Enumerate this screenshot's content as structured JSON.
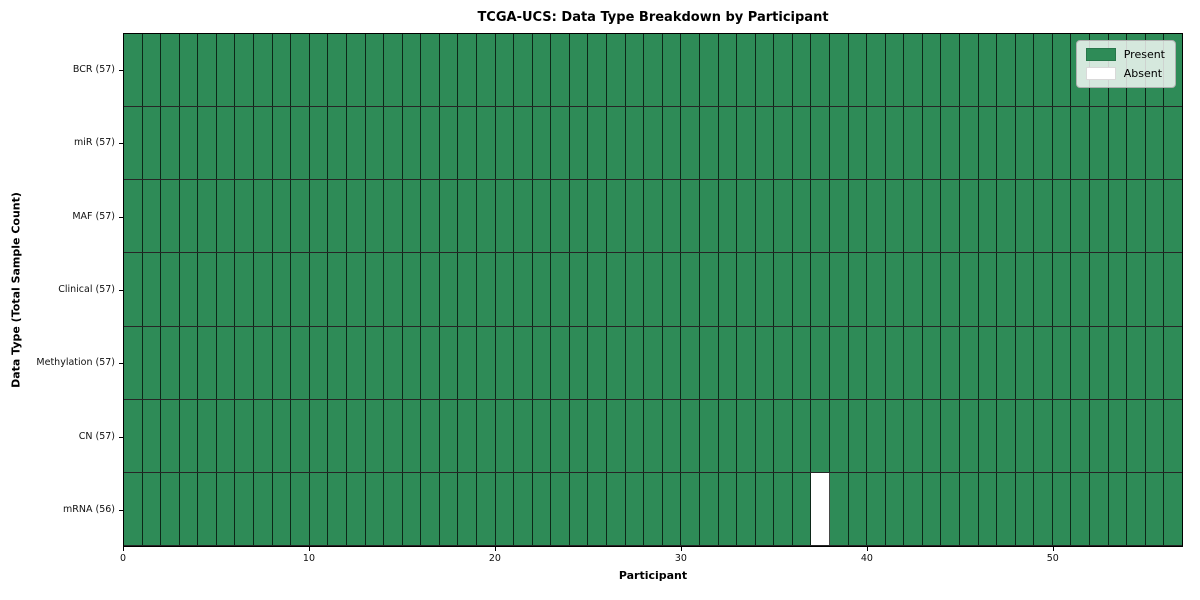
{
  "figure": {
    "title": "TCGA-UCS: Data Type Breakdown by Participant",
    "xlabel": "Participant",
    "ylabel": "Data Type (Total Sample Count)"
  },
  "legend": {
    "items": [
      {
        "label": "Present",
        "color": "#2e8b57"
      },
      {
        "label": "Absent",
        "color": "#ffffff"
      }
    ]
  },
  "chart_data": {
    "type": "heatmap",
    "title": "TCGA-UCS: Data Type Breakdown by Participant",
    "xlabel": "Participant",
    "ylabel": "Data Type (Total Sample Count)",
    "n_participants": 57,
    "x_ticks": [
      0,
      10,
      20,
      30,
      40,
      50
    ],
    "xlim": [
      0,
      57
    ],
    "grid": true,
    "legend_position": "upper right",
    "legend_entries": [
      "Present",
      "Absent"
    ],
    "colors": {
      "present": "#2e8b57",
      "absent": "#ffffff"
    },
    "rows": [
      {
        "key": "bcr",
        "name": "BCR",
        "total": 57,
        "label": "BCR (57)",
        "missing_participants": []
      },
      {
        "key": "mir",
        "name": "miR",
        "total": 57,
        "label": "miR (57)",
        "missing_participants": []
      },
      {
        "key": "maf",
        "name": "MAF",
        "total": 57,
        "label": "MAF (57)",
        "missing_participants": []
      },
      {
        "key": "clinical",
        "name": "Clinical",
        "total": 57,
        "label": "Clinical (57)",
        "missing_participants": []
      },
      {
        "key": "methylation",
        "name": "Methylation",
        "total": 57,
        "label": "Methylation (57)",
        "missing_participants": []
      },
      {
        "key": "cn",
        "name": "CN",
        "total": 57,
        "label": "CN (57)",
        "missing_participants": []
      },
      {
        "key": "mrna",
        "name": "mRNA",
        "total": 56,
        "label": "mRNA (56)",
        "missing_participants": [
          37
        ]
      }
    ]
  }
}
